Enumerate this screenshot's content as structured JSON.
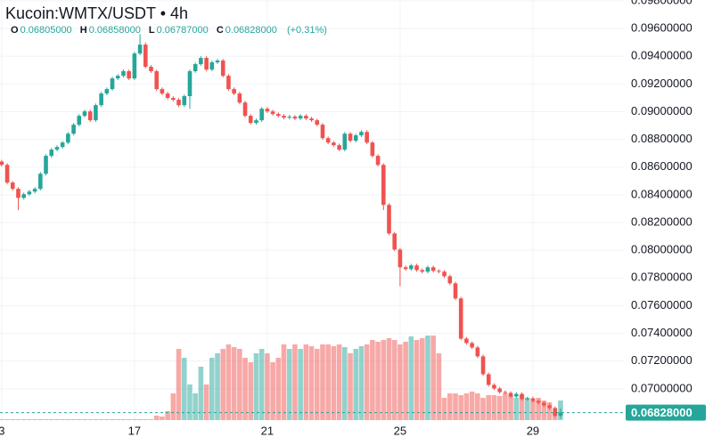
{
  "header": {
    "symbol": "Kucoin:WMTX/USDT • 4h",
    "ohlc": [
      {
        "key": "O",
        "value": "0.06805000"
      },
      {
        "key": "H",
        "value": "0.06858000"
      },
      {
        "key": "L",
        "value": "0.06787000"
      },
      {
        "key": "C",
        "value": "0.06828000"
      }
    ],
    "change": "(+0.31%)"
  },
  "chart_data": {
    "type": "candlestick",
    "x": [
      13,
      13.167,
      13.333,
      13.5,
      13.667,
      13.833,
      14,
      14.167,
      14.333,
      14.5,
      14.667,
      14.833,
      15,
      15.167,
      15.333,
      15.5,
      15.667,
      15.833,
      16,
      16.167,
      16.333,
      16.5,
      16.667,
      16.833,
      17,
      17.167,
      17.333,
      17.5,
      17.667,
      17.833,
      18,
      18.167,
      18.333,
      18.5,
      18.667,
      18.833,
      19,
      19.167,
      19.333,
      19.5,
      19.667,
      19.833,
      20,
      20.167,
      20.333,
      20.5,
      20.667,
      20.833,
      21,
      21.167,
      21.333,
      21.5,
      21.667,
      21.833,
      22,
      22.167,
      22.333,
      22.5,
      22.667,
      22.833,
      23,
      23.167,
      23.333,
      23.5,
      23.667,
      23.833,
      24,
      24.167,
      24.333,
      24.5,
      24.667,
      24.833,
      25,
      25.167,
      25.333,
      25.5,
      25.667,
      25.833,
      26,
      26.167,
      26.333,
      26.5,
      26.667,
      26.833,
      27,
      27.167,
      27.333,
      27.5,
      27.667,
      27.833,
      28,
      28.167,
      28.333,
      28.5,
      28.667,
      28.833,
      29,
      29.167,
      29.333,
      29.5,
      29.667,
      29.833
    ],
    "open": [
      0.0864,
      0.08616,
      0.08488,
      0.08443,
      0.08378,
      0.08404,
      0.08423,
      0.08443,
      0.08552,
      0.08681,
      0.08726,
      0.08745,
      0.08777,
      0.08841,
      0.08906,
      0.0897,
      0.09002,
      0.08938,
      0.09047,
      0.09131,
      0.09163,
      0.0924,
      0.09259,
      0.09292,
      0.0924,
      0.0942,
      0.09484,
      0.09324,
      0.09292,
      0.09163,
      0.09131,
      0.09099,
      0.09086,
      0.09047,
      0.09112,
      0.09292,
      0.09343,
      0.09388,
      0.09304,
      0.09356,
      0.09369,
      0.09259,
      0.09163,
      0.09131,
      0.09066,
      0.0897,
      0.08919,
      0.08938,
      0.09021,
      0.09002,
      0.08983,
      0.0897,
      0.08957,
      0.08964,
      0.08951,
      0.0897,
      0.08951,
      0.08938,
      0.08906,
      0.08809,
      0.08777,
      0.08758,
      0.08726,
      0.08841,
      0.0879,
      0.08829,
      0.08854,
      0.08777,
      0.08681,
      0.08616,
      0.08327,
      0.08121,
      0.08005,
      0.07877,
      0.07864,
      0.0789,
      0.07857,
      0.07845,
      0.07877,
      0.07851,
      0.07845,
      0.07812,
      0.07761,
      0.07652,
      0.07362,
      0.0733,
      0.07298,
      0.07234,
      0.07105,
      0.07028,
      0.07002,
      0.06976,
      0.0697,
      0.06944,
      0.06963,
      0.06925,
      0.06931,
      0.06912,
      0.06899,
      0.0688,
      0.06861,
      0.06805
    ],
    "high": [
      0.08652,
      0.08628,
      0.085,
      0.08455,
      0.08416,
      0.08435,
      0.08455,
      0.08564,
      0.08693,
      0.08738,
      0.08757,
      0.08789,
      0.08853,
      0.08918,
      0.08982,
      0.09014,
      0.09014,
      0.09059,
      0.09143,
      0.09175,
      0.09252,
      0.09271,
      0.09304,
      0.09304,
      0.09432,
      0.0956,
      0.095,
      0.09336,
      0.09304,
      0.09175,
      0.09143,
      0.09111,
      0.09098,
      0.09124,
      0.09304,
      0.09355,
      0.094,
      0.094,
      0.09368,
      0.09381,
      0.09381,
      0.09271,
      0.09175,
      0.09143,
      0.09078,
      0.08982,
      0.0895,
      0.09033,
      0.09033,
      0.09014,
      0.08995,
      0.08982,
      0.08976,
      0.08976,
      0.08982,
      0.08982,
      0.08963,
      0.0895,
      0.08918,
      0.08821,
      0.08789,
      0.0877,
      0.08853,
      0.08853,
      0.08841,
      0.08866,
      0.08866,
      0.08789,
      0.08693,
      0.08628,
      0.08339,
      0.08133,
      0.08017,
      0.07889,
      0.07902,
      0.07902,
      0.07869,
      0.07889,
      0.07889,
      0.07863,
      0.07857,
      0.07824,
      0.07773,
      0.07664,
      0.07374,
      0.07342,
      0.0731,
      0.07246,
      0.07117,
      0.0704,
      0.07014,
      0.06988,
      0.06982,
      0.06975,
      0.06975,
      0.06943,
      0.06943,
      0.06924,
      0.06911,
      0.06892,
      0.06873,
      0.06858
    ],
    "low": [
      0.08604,
      0.08476,
      0.08431,
      0.0829,
      0.08366,
      0.08392,
      0.08411,
      0.08431,
      0.0854,
      0.08669,
      0.08714,
      0.08733,
      0.08765,
      0.08829,
      0.08894,
      0.08958,
      0.08926,
      0.08926,
      0.09035,
      0.09119,
      0.09151,
      0.09228,
      0.09247,
      0.09228,
      0.09228,
      0.09408,
      0.09312,
      0.0928,
      0.09151,
      0.09119,
      0.09087,
      0.09074,
      0.09035,
      0.09035,
      0.0902,
      0.0928,
      0.09331,
      0.09292,
      0.09292,
      0.09344,
      0.09247,
      0.09151,
      0.09119,
      0.09054,
      0.08958,
      0.08907,
      0.08907,
      0.08926,
      0.0899,
      0.08971,
      0.08958,
      0.08945,
      0.08945,
      0.08939,
      0.08939,
      0.08939,
      0.08926,
      0.08894,
      0.08797,
      0.08765,
      0.08746,
      0.08714,
      0.08714,
      0.08778,
      0.08778,
      0.08817,
      0.08765,
      0.08669,
      0.08604,
      0.0829,
      0.08109,
      0.07993,
      0.0774,
      0.07852,
      0.07852,
      0.07845,
      0.07833,
      0.07833,
      0.07839,
      0.07833,
      0.078,
      0.07749,
      0.0764,
      0.0735,
      0.07318,
      0.07286,
      0.07222,
      0.07093,
      0.07016,
      0.0699,
      0.06964,
      0.06958,
      0.06932,
      0.06932,
      0.06913,
      0.06913,
      0.069,
      0.06887,
      0.06868,
      0.06849,
      0.06793,
      0.06787
    ],
    "close": [
      0.08616,
      0.08488,
      0.08443,
      0.08378,
      0.08404,
      0.08423,
      0.08443,
      0.08552,
      0.08681,
      0.08726,
      0.08745,
      0.08777,
      0.08841,
      0.08906,
      0.0897,
      0.09002,
      0.08938,
      0.09047,
      0.09131,
      0.09163,
      0.0924,
      0.09259,
      0.09292,
      0.0924,
      0.0942,
      0.09484,
      0.09324,
      0.09292,
      0.09163,
      0.09131,
      0.09099,
      0.09086,
      0.09047,
      0.09112,
      0.09292,
      0.09343,
      0.09388,
      0.09304,
      0.09356,
      0.09369,
      0.09259,
      0.09163,
      0.09131,
      0.09066,
      0.0897,
      0.08919,
      0.08938,
      0.09021,
      0.09002,
      0.08983,
      0.0897,
      0.08957,
      0.08964,
      0.08951,
      0.0897,
      0.08951,
      0.08938,
      0.08906,
      0.08809,
      0.08777,
      0.08758,
      0.08726,
      0.08841,
      0.0879,
      0.08829,
      0.08854,
      0.08777,
      0.08681,
      0.08616,
      0.08327,
      0.08121,
      0.08005,
      0.07877,
      0.07864,
      0.0789,
      0.07857,
      0.07845,
      0.07877,
      0.07851,
      0.07845,
      0.07812,
      0.07761,
      0.07652,
      0.07362,
      0.0733,
      0.07298,
      0.07234,
      0.07105,
      0.07028,
      0.07002,
      0.06976,
      0.0697,
      0.06944,
      0.06963,
      0.06925,
      0.06931,
      0.06912,
      0.06899,
      0.0688,
      0.06861,
      0.06805,
      0.06828
    ],
    "volume": [
      1,
      1,
      1,
      1,
      1,
      1,
      1,
      1,
      1,
      1,
      1,
      1,
      1,
      1,
      1,
      1,
      1,
      1,
      1,
      1,
      1,
      1,
      1,
      1,
      1,
      1,
      1,
      1,
      5,
      4,
      10,
      30,
      80,
      70,
      40,
      30,
      60,
      40,
      70,
      75,
      80,
      85,
      82,
      80,
      70,
      65,
      75,
      80,
      75,
      65,
      70,
      85,
      80,
      85,
      80,
      85,
      83,
      80,
      85,
      85,
      83,
      85,
      82,
      75,
      80,
      83,
      85,
      90,
      88,
      90,
      92,
      90,
      85,
      88,
      94,
      90,
      92,
      95,
      95,
      75,
      25,
      30,
      30,
      28,
      30,
      32,
      30,
      25,
      28,
      28,
      27,
      30,
      28,
      25,
      28,
      25,
      22,
      25,
      22,
      20,
      8,
      22
    ],
    "xlim": [
      12.95,
      31.74
    ],
    "xticks": [
      {
        "value": 13,
        "label": "3"
      },
      17,
      21,
      25,
      29
    ],
    "ylim": [
      0.06774,
      0.09806
    ],
    "yticks": [
      {
        "value": 0.098,
        "label": "0.09800000"
      },
      {
        "value": 0.096,
        "label": "0.09600000"
      },
      {
        "value": 0.094,
        "label": "0.09400000"
      },
      {
        "value": 0.092,
        "label": "0.09200000"
      },
      {
        "value": 0.09,
        "label": "0.09000000"
      },
      {
        "value": 0.088,
        "label": "0.08800000"
      },
      {
        "value": 0.086,
        "label": "0.08600000"
      },
      {
        "value": 0.084,
        "label": "0.08400000"
      },
      {
        "value": 0.082,
        "label": "0.08200000"
      },
      {
        "value": 0.08,
        "label": "0.08000000"
      },
      {
        "value": 0.078,
        "label": "0.07800000"
      },
      {
        "value": 0.076,
        "label": "0.07600000"
      },
      {
        "value": 0.074,
        "label": "0.07400000"
      },
      {
        "value": 0.072,
        "label": "0.07200000"
      },
      {
        "value": 0.07,
        "label": "0.07000000"
      }
    ],
    "last_price": {
      "value": 0.06828,
      "label": "0.06828000"
    },
    "up_color": "#26a69a",
    "down_color": "#ef5350",
    "grid": true
  }
}
